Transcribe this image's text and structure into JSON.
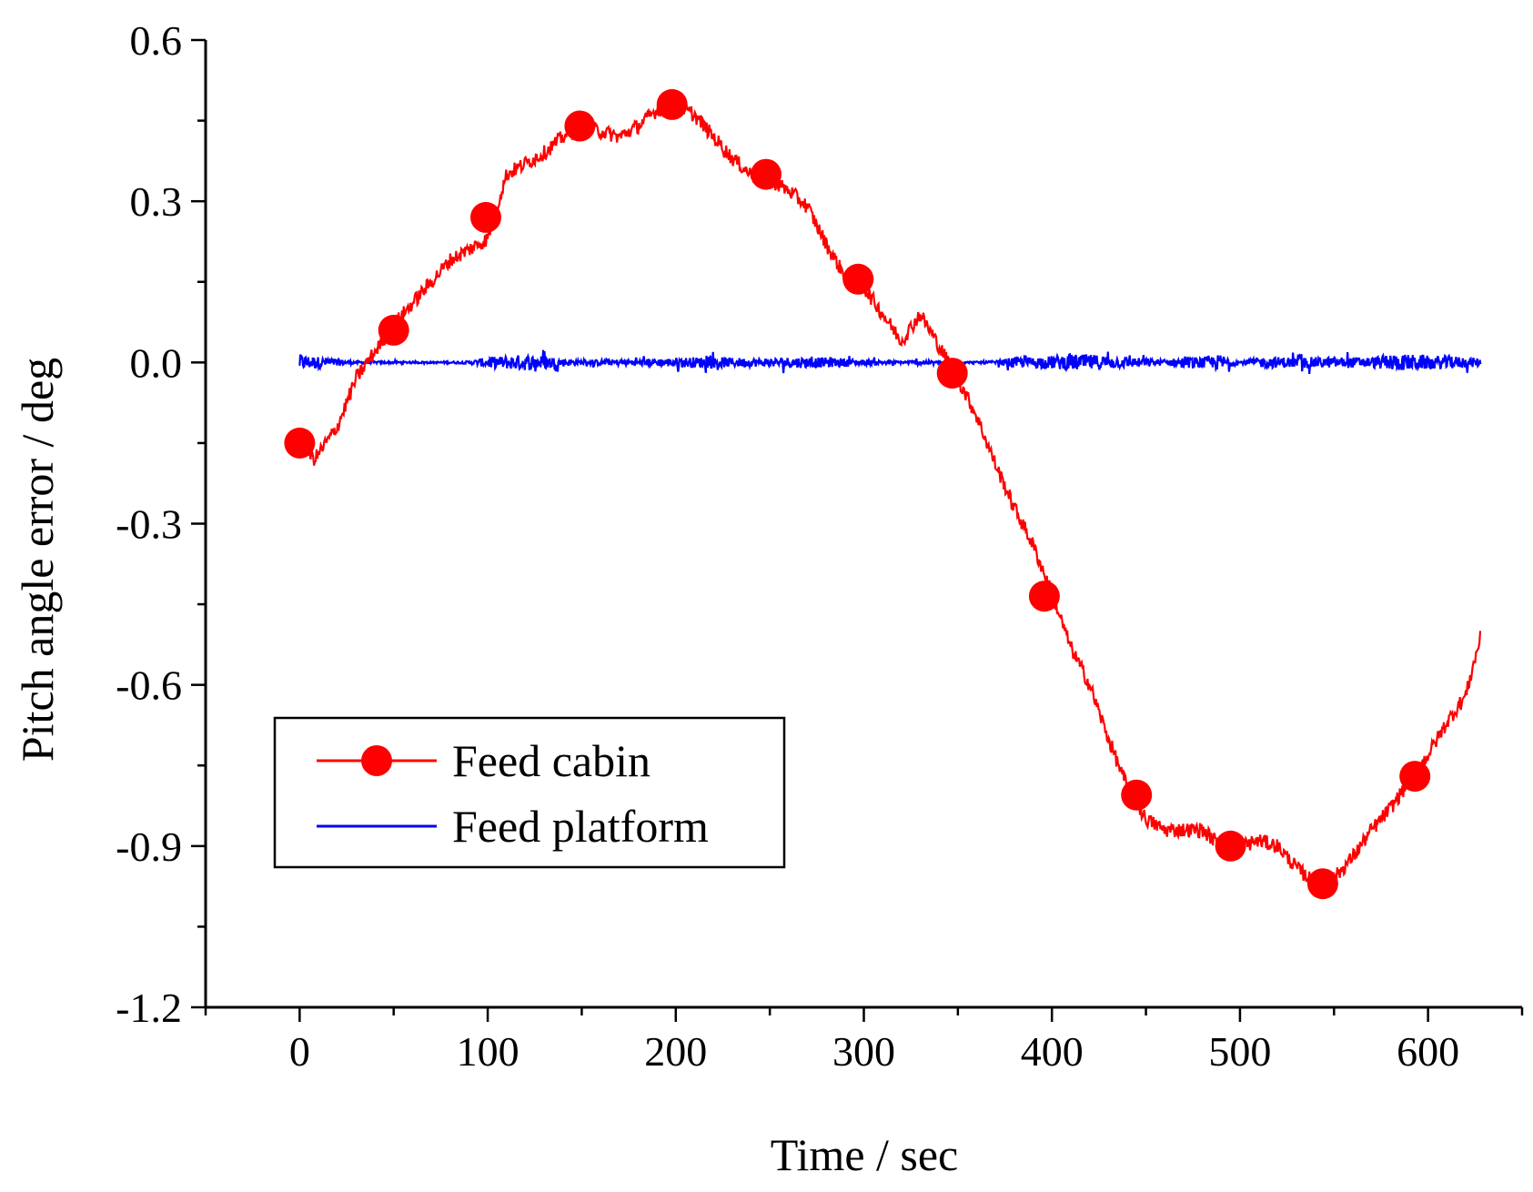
{
  "chart_data": {
    "type": "line",
    "title": "",
    "xlabel": "Time / sec",
    "ylabel": "Pitch angle error / deg",
    "xlim": [
      -50,
      650
    ],
    "ylim": [
      -1.2,
      0.6
    ],
    "xticks": [
      0,
      100,
      200,
      300,
      400,
      500,
      600
    ],
    "xtick_labels": [
      "0",
      "100",
      "200",
      "300",
      "400",
      "500",
      "600"
    ],
    "yticks": [
      -1.2,
      -0.9,
      -0.6,
      -0.3,
      0.0,
      0.3,
      0.6
    ],
    "ytick_labels": [
      "-1.2",
      "-0.9",
      "-0.6",
      "-0.3",
      "0.0",
      "0.3",
      "0.6"
    ],
    "grid": false,
    "legend_position": "bottom-left",
    "series": [
      {
        "name": "Feed cabin",
        "color": "#ff0000",
        "marker": "circle",
        "x": [
          0,
          8,
          20,
          30,
          40,
          50,
          60,
          70,
          80,
          90,
          100,
          110,
          120,
          130,
          140,
          150,
          160,
          170,
          180,
          190,
          200,
          210,
          220,
          230,
          240,
          250,
          260,
          270,
          280,
          290,
          300,
          310,
          320,
          330,
          340,
          350,
          360,
          370,
          380,
          390,
          400,
          410,
          420,
          430,
          440,
          450,
          460,
          470,
          480,
          490,
          500,
          510,
          520,
          530,
          540,
          550,
          560,
          570,
          580,
          590,
          600,
          610,
          620,
          628
        ],
        "y": [
          -0.15,
          -0.18,
          -0.12,
          -0.03,
          0.02,
          0.07,
          0.11,
          0.15,
          0.19,
          0.21,
          0.23,
          0.35,
          0.37,
          0.39,
          0.42,
          0.44,
          0.43,
          0.42,
          0.44,
          0.47,
          0.48,
          0.46,
          0.42,
          0.38,
          0.35,
          0.34,
          0.32,
          0.29,
          0.22,
          0.16,
          0.14,
          0.09,
          0.04,
          0.09,
          0.03,
          -0.03,
          -0.1,
          -0.19,
          -0.27,
          -0.34,
          -0.43,
          -0.53,
          -0.6,
          -0.7,
          -0.79,
          -0.85,
          -0.87,
          -0.87,
          -0.87,
          -0.9,
          -0.9,
          -0.89,
          -0.9,
          -0.94,
          -0.97,
          -0.96,
          -0.92,
          -0.87,
          -0.83,
          -0.78,
          -0.73,
          -0.67,
          -0.62,
          -0.51
        ],
        "marker_x": [
          0,
          50,
          99,
          149,
          198,
          248,
          297,
          347,
          396,
          445,
          495,
          544,
          593
        ],
        "marker_y": [
          -0.15,
          0.06,
          0.27,
          0.44,
          0.48,
          0.35,
          0.155,
          -0.02,
          -0.435,
          -0.805,
          -0.9,
          -0.97,
          -0.77
        ]
      },
      {
        "name": "Feed platform",
        "color": "#0000ff",
        "marker": "none",
        "x": [
          0,
          30,
          50,
          70,
          90,
          100,
          110,
          120,
          130,
          140,
          150,
          160,
          170,
          180,
          190,
          200,
          210,
          220,
          230,
          240,
          250,
          260,
          270,
          280,
          290,
          300,
          310,
          320,
          330,
          340,
          350,
          360,
          370,
          380,
          390,
          400,
          410,
          420,
          430,
          440,
          450,
          460,
          470,
          480,
          490,
          500,
          510,
          520,
          530,
          540,
          550,
          560,
          570,
          580,
          590,
          600,
          610,
          620,
          628
        ],
        "y": [
          0.0,
          0.0,
          0.0,
          0.0,
          0.0,
          0.0,
          0.0,
          0.0,
          0.0,
          0.0,
          0.0,
          0.0,
          0.0,
          0.0,
          0.0,
          0.0,
          0.0,
          0.0,
          0.0,
          0.0,
          0.0,
          0.0,
          0.0,
          0.0,
          0.0,
          0.0,
          0.0,
          0.0,
          0.0,
          0.0,
          0.0,
          0.0,
          0.0,
          0.0,
          0.0,
          0.0,
          0.0,
          0.0,
          0.0,
          0.0,
          0.0,
          0.0,
          0.0,
          0.0,
          0.0,
          0.0,
          0.0,
          0.0,
          0.0,
          0.0,
          0.0,
          0.0,
          0.0,
          0.0,
          0.0,
          0.0,
          0.0,
          0.0,
          0.0
        ],
        "noise_amplitude": [
          0.03,
          0.005,
          0.004,
          0.003,
          0.005,
          0.02,
          0.025,
          0.03,
          0.025,
          0.015,
          0.008,
          0.01,
          0.012,
          0.012,
          0.014,
          0.018,
          0.02,
          0.02,
          0.018,
          0.016,
          0.015,
          0.02,
          0.02,
          0.018,
          0.016,
          0.01,
          0.008,
          0.005,
          0.01,
          0.004,
          0.003,
          0.004,
          0.006,
          0.02,
          0.02,
          0.025,
          0.03,
          0.03,
          0.025,
          0.02,
          0.015,
          0.01,
          0.02,
          0.02,
          0.03,
          0.005,
          0.02,
          0.02,
          0.02,
          0.02,
          0.02,
          0.02,
          0.02,
          0.03,
          0.03,
          0.025,
          0.025,
          0.02,
          0.015
        ]
      }
    ]
  }
}
